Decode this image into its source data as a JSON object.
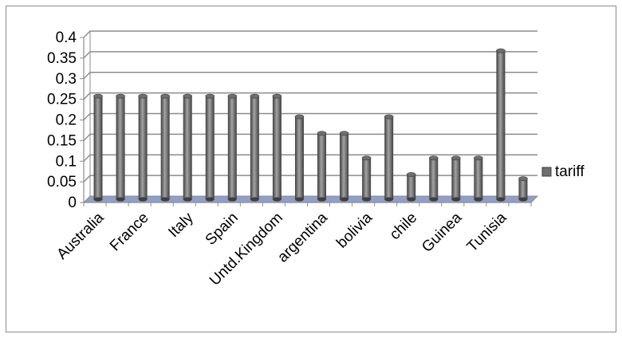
{
  "chart_data": {
    "type": "bar",
    "style": "3d-cylinder",
    "categories": [
      "Australia",
      "",
      "France",
      "",
      "Italy",
      "",
      "Spain",
      "",
      "Untd.Kingdom",
      "",
      "argentina",
      "",
      "bolivia",
      "",
      "chile",
      "",
      "Guinea",
      "",
      "Tunisia",
      ""
    ],
    "series": [
      {
        "name": "tariff",
        "values": [
          0.25,
          0.25,
          0.25,
          0.25,
          0.25,
          0.25,
          0.25,
          0.25,
          0.25,
          0.2,
          0.16,
          0.16,
          0.1,
          0.2,
          0.06,
          0.1,
          0.1,
          0.1,
          0.36,
          0.05
        ]
      }
    ],
    "yticks": [
      "0",
      "0.05",
      "0.1",
      "0.15",
      "0.2",
      "0.25",
      "0.3",
      "0.35",
      "0.4"
    ],
    "ylim": [
      0,
      0.4
    ],
    "grid": true,
    "legend_position": "right",
    "colors": {
      "bar": "#6e6e6e",
      "bar_dark": "#3f3f3f",
      "bar_light": "#a3a3a3",
      "floor": "#8fa0c8",
      "grid": "#8c8c8c"
    }
  }
}
